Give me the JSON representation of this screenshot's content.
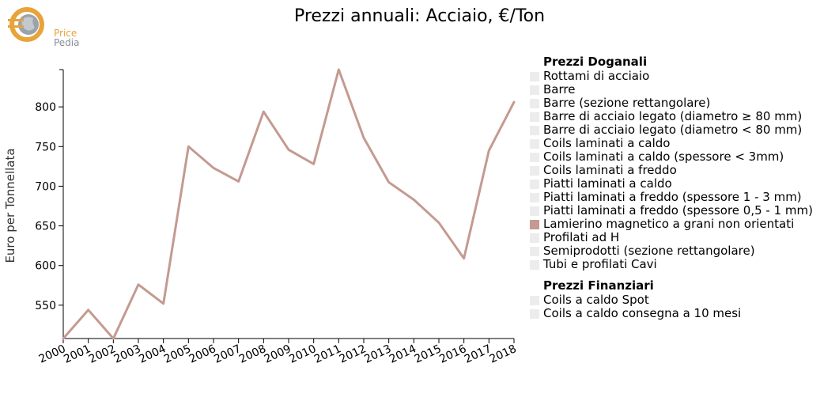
{
  "logo": {
    "line1": "Price",
    "line2": "Pedia"
  },
  "title": "Prezzi annuali: Acciaio, €/Ton",
  "colors": {
    "series": "#c49a91",
    "inactive_swatch": "#ececec",
    "axis": "#000000"
  },
  "legend": {
    "groups": [
      {
        "title": "Prezzi Doganali",
        "items": [
          {
            "label": "Rottami di acciaio",
            "active": false
          },
          {
            "label": "Barre",
            "active": false
          },
          {
            "label": "Barre (sezione rettangolare)",
            "active": false
          },
          {
            "label": "Barre di acciaio legato (diametro ≥ 80 mm)",
            "active": false
          },
          {
            "label": "Barre di acciaio legato (diametro < 80 mm)",
            "active": false
          },
          {
            "label": "Coils laminati a caldo",
            "active": false
          },
          {
            "label": "Coils laminati a caldo (spessore < 3mm)",
            "active": false
          },
          {
            "label": "Coils laminati a freddo",
            "active": false
          },
          {
            "label": "Piatti laminati a caldo",
            "active": false
          },
          {
            "label": "Piatti laminati a freddo (spessore 1 - 3 mm)",
            "active": false
          },
          {
            "label": "Piatti laminati a freddo (spessore 0,5 - 1 mm)",
            "active": false
          },
          {
            "label": "Lamierino magnetico a grani non orientati",
            "active": true
          },
          {
            "label": "Profilati ad H",
            "active": false
          },
          {
            "label": "Semiprodotti (sezione rettangolare)",
            "active": false
          },
          {
            "label": "Tubi e profilati Cavi",
            "active": false
          }
        ]
      },
      {
        "title": "Prezzi Finanziari",
        "items": [
          {
            "label": "Coils a caldo Spot",
            "active": false
          },
          {
            "label": "Coils a caldo consegna a 10 mesi",
            "active": false
          }
        ]
      }
    ]
  },
  "chart_data": {
    "type": "line",
    "title": "Prezzi annuali: Acciaio, €/Ton",
    "xlabel": "",
    "ylabel": "Euro per Tonnellata",
    "ylim": [
      508,
      847
    ],
    "yticks": [
      550,
      600,
      650,
      700,
      750,
      800
    ],
    "x": [
      "2000",
      "2001",
      "2002",
      "2003",
      "2004",
      "2005",
      "2006",
      "2007",
      "2008",
      "2009",
      "2010",
      "2011",
      "2012",
      "2013",
      "2014",
      "2015",
      "2016",
      "2017",
      "2018"
    ],
    "series": [
      {
        "name": "Lamierino magnetico a grani non orientati",
        "values": [
          508,
          544,
          508,
          576,
          552,
          750,
          723,
          706,
          794,
          746,
          728,
          847,
          761,
          705,
          683,
          654,
          609,
          745,
          806
        ]
      }
    ],
    "grid": false,
    "legend_position": "right"
  }
}
